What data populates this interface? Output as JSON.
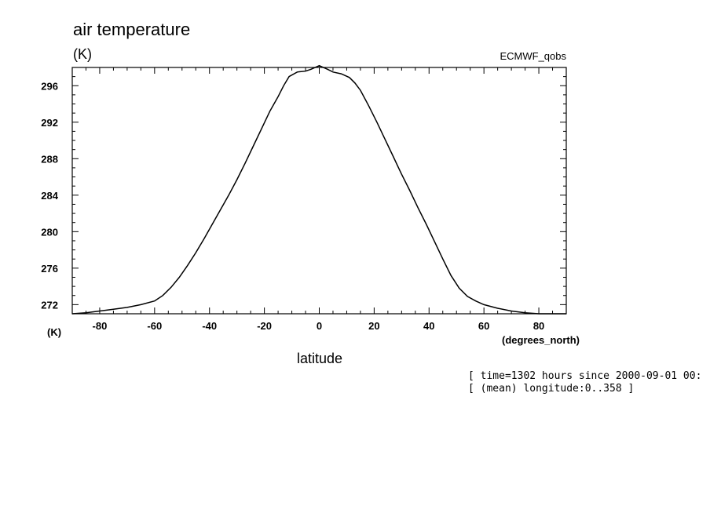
{
  "chart_data": {
    "type": "line",
    "title": "air temperature",
    "units": "(K)",
    "dataset": "ECMWF_qobs",
    "ylabel": "(K)",
    "xlabel": "latitude",
    "xunits": "(degrees_north)",
    "xlim": [
      -90,
      90
    ],
    "ylim": [
      271,
      298
    ],
    "xticks": [
      -80,
      -60,
      -40,
      -20,
      0,
      20,
      40,
      60,
      80
    ],
    "xtick_labels": [
      "-80",
      "-60",
      "-40",
      "-20",
      "0",
      "20",
      "40",
      "60",
      "80"
    ],
    "yticks": [
      272,
      276,
      280,
      284,
      288,
      292,
      296
    ],
    "ytick_labels": [
      "272",
      "276",
      "280",
      "284",
      "288",
      "292",
      "296"
    ],
    "grid": false,
    "series": [
      {
        "x": [
          -90,
          -85,
          -80,
          -75,
          -70,
          -65,
          -60,
          -57,
          -54,
          -51,
          -48,
          -45,
          -42,
          -39,
          -36,
          -33,
          -30,
          -27,
          -24,
          -21,
          -18,
          -15,
          -13,
          -11,
          -8,
          -5,
          -3,
          0,
          3,
          5,
          8,
          11,
          13,
          15,
          18,
          21,
          24,
          27,
          30,
          33,
          36,
          39,
          42,
          45,
          48,
          51,
          54,
          57,
          60,
          65,
          70,
          75,
          80,
          85,
          90
        ],
        "y": [
          271.0,
          271.1,
          271.3,
          271.5,
          271.7,
          272.0,
          272.4,
          273.0,
          273.9,
          275.0,
          276.3,
          277.7,
          279.2,
          280.8,
          282.4,
          284.0,
          285.7,
          287.5,
          289.4,
          291.3,
          293.2,
          294.8,
          296.0,
          297.0,
          297.5,
          297.6,
          297.8,
          298.2,
          297.8,
          297.5,
          297.3,
          296.9,
          296.3,
          295.5,
          293.8,
          292.0,
          290.1,
          288.2,
          286.3,
          284.5,
          282.6,
          280.8,
          278.9,
          277.0,
          275.2,
          273.8,
          272.9,
          272.4,
          272.0,
          271.6,
          271.3,
          271.1,
          271.0,
          271.0,
          271.0
        ]
      }
    ]
  },
  "footer": {
    "time_note": "[ time=1302 hours since 2000-09-01 00:",
    "longitude_note": "[ (mean) longitude:0..358 ]"
  }
}
